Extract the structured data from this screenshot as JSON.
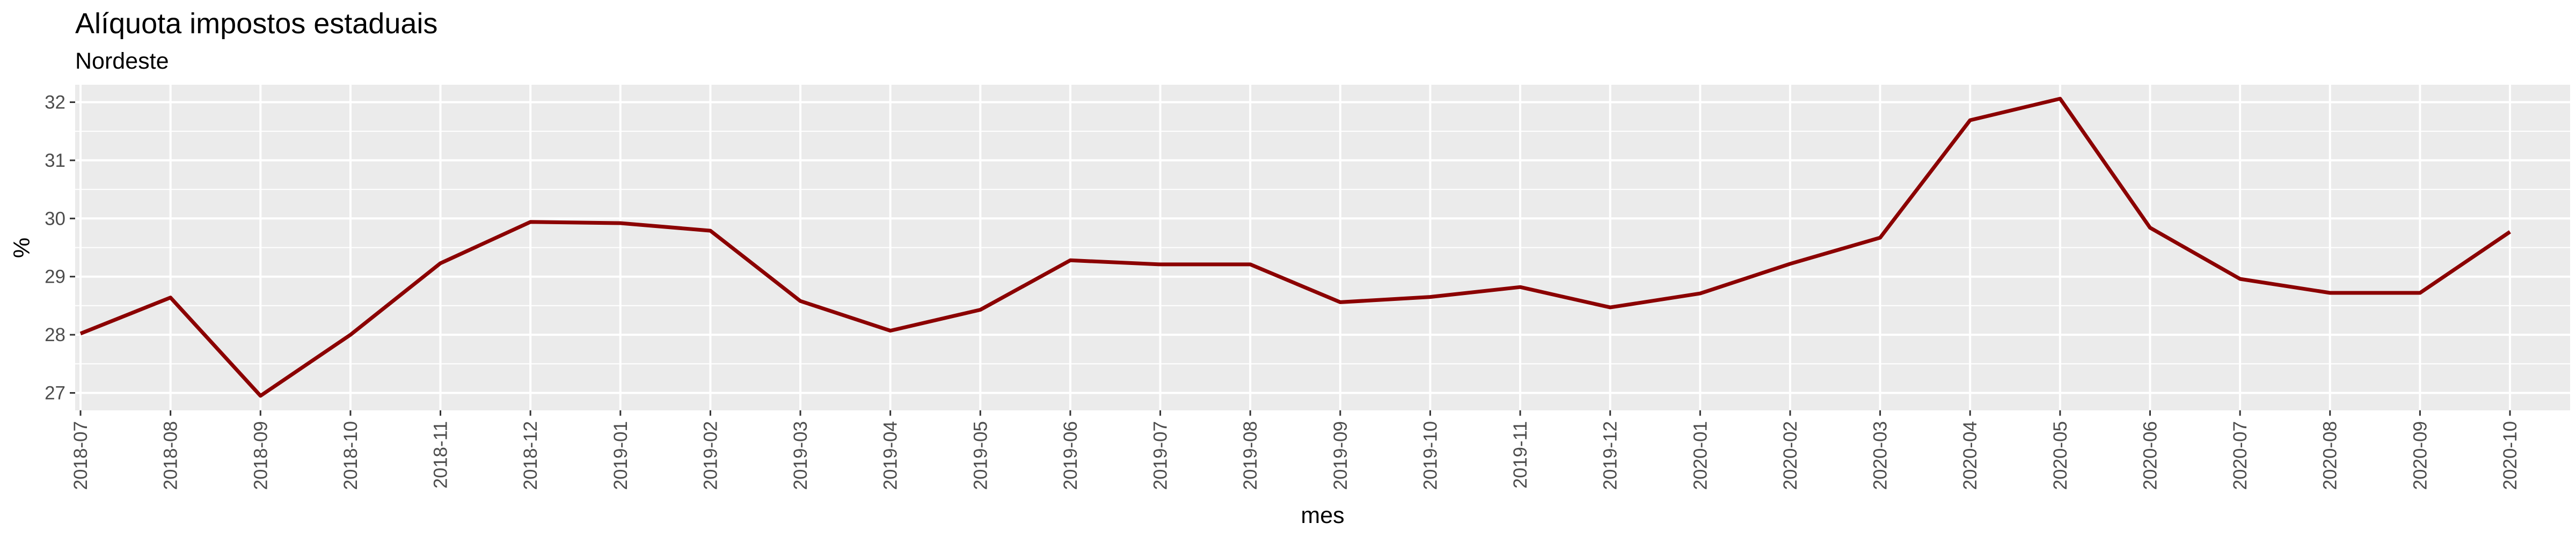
{
  "chart_data": {
    "type": "line",
    "title": "Alíquota impostos estaduais",
    "subtitle": "Nordeste",
    "xlabel": "mes",
    "ylabel": "%",
    "ylim": [
      26.7,
      32.3
    ],
    "y_ticks": [
      27,
      28,
      29,
      30,
      31,
      32
    ],
    "grid": true,
    "categories": [
      "2018-07",
      "2018-08",
      "2018-09",
      "2018-10",
      "2018-11",
      "2018-12",
      "2019-01",
      "2019-02",
      "2019-03",
      "2019-04",
      "2019-05",
      "2019-06",
      "2019-07",
      "2019-08",
      "2019-09",
      "2019-10",
      "2019-11",
      "2019-12",
      "2020-01",
      "2020-02",
      "2020-03",
      "2020-04",
      "2020-05",
      "2020-06",
      "2020-07",
      "2020-08",
      "2020-09",
      "2020-10"
    ],
    "series": [
      {
        "color": "#8B0000",
        "values": [
          28.02,
          28.64,
          26.95,
          28.0,
          29.23,
          29.94,
          29.92,
          29.79,
          28.58,
          28.07,
          28.43,
          29.28,
          29.21,
          29.21,
          28.56,
          28.65,
          28.82,
          28.47,
          28.71,
          29.22,
          29.67,
          31.69,
          32.06,
          29.84,
          28.96,
          28.72,
          28.72,
          29.77
        ]
      }
    ]
  }
}
